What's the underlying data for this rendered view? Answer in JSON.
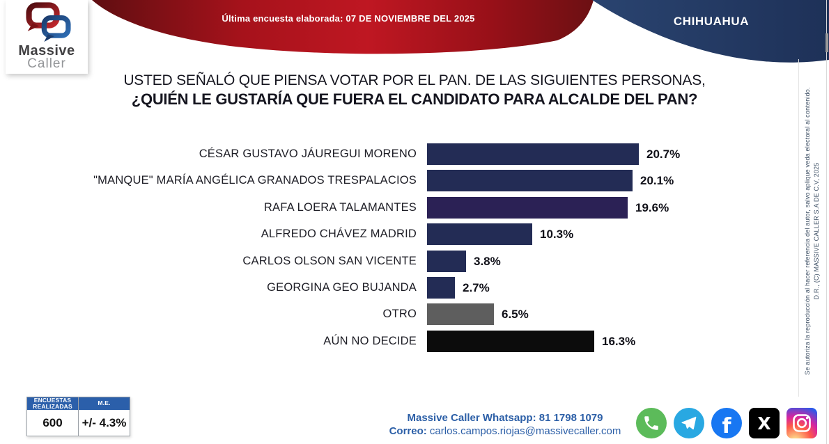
{
  "header": {
    "date_line": "Última encuesta elaborada: 07 DE NOVIEMBRE DEL 2025",
    "region": "CHIHUAHUA",
    "logo": {
      "brand_top": "Massive",
      "brand_bottom": "Caller"
    },
    "colors": {
      "red_dark": "#5f0e11",
      "red_bright": "#bf1722",
      "navy": "#223a66"
    }
  },
  "title": {
    "line1": "USTED SEÑALÓ QUE PIENSA VOTAR POR EL PAN. DE LAS SIGUIENTES PERSONAS,",
    "line2": "¿QUIÉN LE GUSTARÍA QUE FUERA EL CANDIDATO PARA ALCALDE DEL PAN?"
  },
  "chart_data": {
    "type": "bar",
    "orientation": "horizontal",
    "title": "USTED SEÑALÓ QUE PIENSA VOTAR POR EL PAN. DE LAS SIGUIENTES PERSONAS, ¿QUIÉN LE GUSTARÍA QUE FUERA EL CANDIDATO PARA ALCALDE DEL PAN?",
    "categories": [
      "CÉSAR GUSTAVO JÁUREGUI MORENO",
      "\"MANQUE\" MARÍA ANGÉLICA GRANADOS TRESPALACIOS",
      "RAFA LOERA TALAMANTES",
      "ALFREDO CHÁVEZ MADRID",
      "CARLOS OLSON SAN VICENTE",
      "GEORGINA GEO BUJANDA",
      "OTRO",
      "AÚN NO DECIDE"
    ],
    "values": [
      20.7,
      20.1,
      19.6,
      10.3,
      3.8,
      2.7,
      6.5,
      16.3
    ],
    "value_labels": [
      "20.7%",
      "20.1%",
      "19.6%",
      "10.3%",
      "3.8%",
      "2.7%",
      "6.5%",
      "16.3%"
    ],
    "bar_colors": [
      "#232c55",
      "#232c55",
      "#2b2155",
      "#232c55",
      "#232c55",
      "#232c55",
      "#5e5e5e",
      "#0c0c0c"
    ],
    "xlabel": "",
    "ylabel": "",
    "xlim": [
      0,
      22
    ],
    "grid": false,
    "legend": null
  },
  "footer": {
    "stats_table": {
      "col1_header": "ENCUESTAS REALIZADAS",
      "col2_header": "M.E.",
      "col1_value": "600",
      "col2_value": "+/- 4.3%",
      "header_bg": "#2b5faa"
    },
    "contact": {
      "line1": "Massive Caller Whatsapp: 81 1798 1079",
      "line2_label": "Correo:",
      "line2_value": " carlos.campos.riojas@massivecaller.com",
      "text_color": "#2c5fa7"
    },
    "social": [
      {
        "name": "whatsapp",
        "color": "#5cbb5a"
      },
      {
        "name": "telegram",
        "color": "#29a8e2"
      },
      {
        "name": "facebook",
        "color": "#1877f2"
      },
      {
        "name": "x",
        "color": "#000000"
      },
      {
        "name": "instagram",
        "colors": [
          "#fdf497",
          "#fd5949",
          "#d6249f",
          "#285AEB"
        ]
      }
    ]
  },
  "legal": {
    "notice": "Se autoriza la reproducción al hacer referencia del autor, salvo aplique veda electoral al contenido.",
    "copyright": "D.R., (C) MASSIVE CALLER S.A DE C.V, 2025"
  }
}
